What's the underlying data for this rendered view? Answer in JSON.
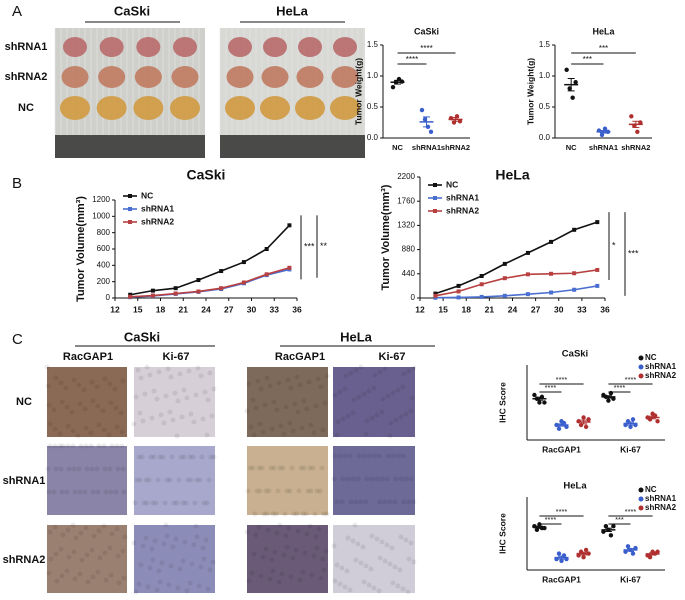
{
  "panel_labels": [
    "A",
    "B",
    "C"
  ],
  "photos": {
    "groups": [
      "CaSki",
      "HeLa"
    ],
    "rows": [
      "shRNA1",
      "shRNA2",
      "NC"
    ]
  },
  "ihc": {
    "groups": [
      "CaSki",
      "HeLa"
    ],
    "markers": [
      "RacGAP1",
      "Ki-67",
      "RacGAP1",
      "Ki-67"
    ],
    "rows": [
      "NC",
      "shRNA1",
      "shRNA2"
    ]
  },
  "chart_data": [
    {
      "type": "dotplot",
      "title": "CaSki",
      "ylabel": "Tumor Weight(g)",
      "categories": [
        "NC",
        "shRNA1",
        "shRNA2"
      ],
      "colors": [
        "#111111",
        "#3a5fcd",
        "#b03030"
      ],
      "points": [
        [
          0.82,
          0.9,
          0.95,
          0.91
        ],
        [
          0.45,
          0.3,
          0.18,
          0.1
        ],
        [
          0.32,
          0.25,
          0.35,
          0.27
        ]
      ],
      "means": [
        0.9,
        0.26,
        0.3
      ],
      "sems": [
        0.03,
        0.08,
        0.03
      ],
      "ylim": [
        0,
        1.5
      ],
      "yticks": [
        {
          "value": 0,
          "label": "0.0"
        },
        0.5,
        {
          "value": 1,
          "label": "1.0"
        },
        1.5
      ],
      "significance": [
        {
          "label": "****",
          "pair": [
            "NC",
            "shRNA1"
          ]
        },
        {
          "label": "****",
          "pair": [
            "NC",
            "shRNA2"
          ]
        }
      ]
    },
    {
      "type": "dotplot",
      "title": "HeLa",
      "ylabel": "Tumor Weight(g)",
      "categories": [
        "NC",
        "shRNA1",
        "shRNA2"
      ],
      "colors": [
        "#111111",
        "#3a5fcd",
        "#b03030"
      ],
      "points": [
        [
          1.1,
          0.8,
          0.65,
          0.9
        ],
        [
          0.12,
          0.05,
          0.15,
          0.1
        ],
        [
          0.35,
          0.2,
          0.1,
          0.25
        ]
      ],
      "means": [
        0.86,
        0.1,
        0.22
      ],
      "sems": [
        0.1,
        0.02,
        0.05
      ],
      "ylim": [
        0,
        1.5
      ],
      "yticks": [
        {
          "value": 0,
          "label": "0.0"
        },
        0.5,
        {
          "value": 1,
          "label": "1.0"
        },
        1.5
      ],
      "significance": [
        {
          "label": "***",
          "pair": [
            "NC",
            "shRNA1"
          ]
        },
        {
          "label": "***",
          "pair": [
            "NC",
            "shRNA2"
          ]
        }
      ]
    },
    {
      "type": "line",
      "title": "CaSki",
      "ylabel": "Tumor Volume(mm³)",
      "x": [
        14,
        17,
        20,
        23,
        26,
        29,
        32,
        35
      ],
      "xlim": [
        12,
        36
      ],
      "xticks": [
        12,
        15,
        18,
        21,
        24,
        27,
        30,
        33,
        36
      ],
      "ylim": [
        0,
        1200
      ],
      "yticks": [
        0,
        200,
        400,
        600,
        800,
        1000,
        1200
      ],
      "series": [
        {
          "name": "NC",
          "color": "#111111",
          "values": [
            40,
            90,
            120,
            220,
            330,
            440,
            600,
            890
          ]
        },
        {
          "name": "shRNA1",
          "color": "#4a6fd0",
          "values": [
            10,
            25,
            50,
            75,
            110,
            180,
            280,
            350
          ]
        },
        {
          "name": "shRNA2",
          "color": "#b84040",
          "values": [
            15,
            30,
            55,
            80,
            120,
            190,
            290,
            370
          ]
        }
      ],
      "significance": [
        {
          "label": "***",
          "pair": [
            "NC",
            "shRNA1"
          ]
        },
        {
          "label": "**",
          "pair": [
            "NC",
            "shRNA2"
          ]
        }
      ]
    },
    {
      "type": "line",
      "title": "HeLa",
      "ylabel": "Tumor Volume(mm³)",
      "x": [
        14,
        17,
        20,
        23,
        26,
        29,
        32,
        35
      ],
      "xlim": [
        12,
        36
      ],
      "xticks": [
        12,
        15,
        18,
        21,
        24,
        27,
        30,
        33,
        36
      ],
      "ylim": [
        0,
        2200
      ],
      "yticks": [
        0,
        440,
        880,
        1320,
        1760,
        2200
      ],
      "series": [
        {
          "name": "NC",
          "color": "#111111",
          "values": [
            80,
            220,
            400,
            620,
            820,
            1020,
            1240,
            1380
          ]
        },
        {
          "name": "shRNA1",
          "color": "#4a6fd0",
          "values": [
            5,
            10,
            20,
            40,
            70,
            100,
            150,
            220
          ]
        },
        {
          "name": "shRNA2",
          "color": "#b84040",
          "values": [
            40,
            120,
            250,
            360,
            430,
            440,
            450,
            510
          ]
        }
      ],
      "significance": [
        {
          "label": "*",
          "pair": [
            "NC",
            "shRNA2"
          ]
        },
        {
          "label": "***",
          "pair": [
            "NC",
            "shRNA1"
          ]
        }
      ]
    },
    {
      "type": "grouped-dotplot",
      "title": "CaSki",
      "ylabel": "IHC Score",
      "categories": [
        "RacGAP1",
        "Ki-67"
      ],
      "ylim": [
        0,
        20
      ],
      "series": [
        {
          "name": "NC",
          "color": "#111111",
          "points": [
            [
              12,
              11,
              10,
              11.5,
              10
            ],
            [
              12,
              11.5,
              10.5,
              12.5,
              11
            ]
          ],
          "means": [
            11,
            11.5
          ],
          "sems": [
            0.4,
            0.3
          ]
        },
        {
          "name": "shRNA1",
          "color": "#3a5fcd",
          "points": [
            [
              4,
              3,
              5,
              4.5,
              3.5
            ],
            [
              4,
              5,
              3.5,
              5.5,
              4
            ]
          ],
          "means": [
            4,
            4.4
          ],
          "sems": [
            0.3,
            0.4
          ]
        },
        {
          "name": "shRNA2",
          "color": "#b03030",
          "points": [
            [
              5,
              4,
              6,
              3.5,
              5.5
            ],
            [
              6,
              5.5,
              7,
              6.5,
              5
            ]
          ],
          "means": [
            4.8,
            6
          ],
          "sems": [
            0.5,
            0.35
          ]
        }
      ],
      "significance": [
        {
          "label": "****",
          "category": "RacGAP1",
          "pair": [
            "NC",
            "shRNA1"
          ]
        },
        {
          "label": "****",
          "category": "RacGAP1",
          "pair": [
            "NC",
            "shRNA2"
          ]
        },
        {
          "label": "****",
          "category": "Ki-67",
          "pair": [
            "NC",
            "shRNA1"
          ]
        },
        {
          "label": "****",
          "category": "Ki-67",
          "pair": [
            "NC",
            "shRNA2"
          ]
        }
      ]
    },
    {
      "type": "grouped-dotplot",
      "title": "HeLa",
      "ylabel": "IHC Score",
      "categories": [
        "RacGAP1",
        "Ki-67"
      ],
      "ylim": [
        0,
        20
      ],
      "series": [
        {
          "name": "NC",
          "color": "#111111",
          "points": [
            [
              12,
              11,
              12.5,
              11.5,
              11.5
            ],
            [
              10.5,
              12,
              11,
              9.5,
              12
            ]
          ],
          "means": [
            11.7,
            11
          ],
          "sems": [
            0.3,
            0.45
          ]
        },
        {
          "name": "shRNA1",
          "color": "#3a5fcd",
          "points": [
            [
              3,
              4.5,
              2.5,
              4,
              3
            ],
            [
              5,
              6.5,
              5.5,
              4.5,
              6
            ]
          ],
          "means": [
            3.4,
            5.5
          ],
          "sems": [
            0.4,
            0.35
          ]
        },
        {
          "name": "shRNA2",
          "color": "#b03030",
          "points": [
            [
              4,
              5,
              3.5,
              5.5,
              4.5
            ],
            [
              4,
              3.5,
              5,
              4.5,
              5
            ]
          ],
          "means": [
            4.5,
            4.4
          ],
          "sems": [
            0.35,
            0.3
          ]
        }
      ],
      "significance": [
        {
          "label": "****",
          "category": "RacGAP1",
          "pair": [
            "NC",
            "shRNA1"
          ]
        },
        {
          "label": "****",
          "category": "RacGAP1",
          "pair": [
            "NC",
            "shRNA2"
          ]
        },
        {
          "label": "***",
          "category": "Ki-67",
          "pair": [
            "NC",
            "shRNA1"
          ]
        },
        {
          "label": "****",
          "category": "Ki-67",
          "pair": [
            "NC",
            "shRNA2"
          ]
        }
      ]
    }
  ]
}
